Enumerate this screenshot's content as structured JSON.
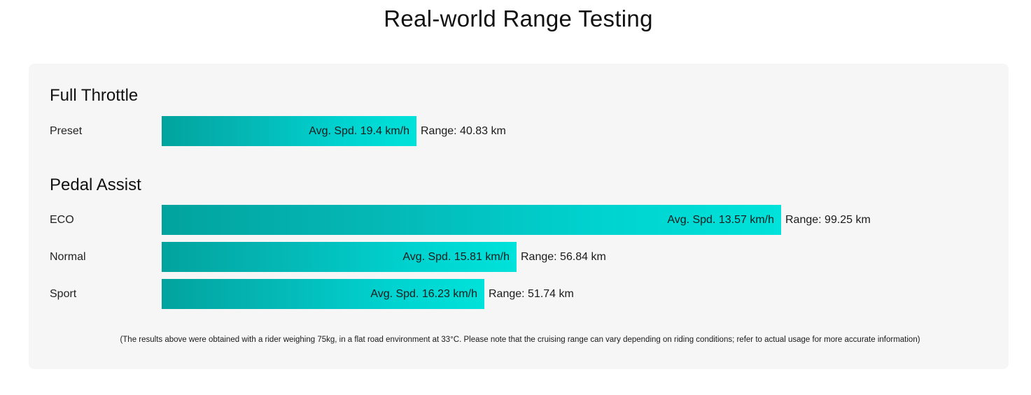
{
  "page": {
    "title": "Real-world Range Testing"
  },
  "chart_data": {
    "type": "bar",
    "title": "Real-world Range Testing",
    "xlabel": "",
    "ylabel": "",
    "grid": false,
    "groups": [
      {
        "title": "Full Throttle",
        "rows": [
          {
            "label": "Preset",
            "range_km": 40.83,
            "speed_text": "Avg. Spd. 19.4 km/h",
            "range_text": "Range: 40.83 km"
          }
        ]
      },
      {
        "title": "Pedal Assist",
        "rows": [
          {
            "label": "ECO",
            "range_km": 99.25,
            "speed_text": "Avg. Spd. 13.57 km/h",
            "range_text": "Range: 99.25 km"
          },
          {
            "label": "Normal",
            "range_km": 56.84,
            "speed_text": "Avg. Spd. 15.81 km/h",
            "range_text": "Range: 56.84 km"
          },
          {
            "label": "Sport",
            "range_km": 51.74,
            "speed_text": "Avg. Spd. 16.23 km/h",
            "range_text": "Range: 51.74 km"
          }
        ]
      }
    ],
    "colors": {
      "bar_start": "#02a39e",
      "bar_end": "#00e2da"
    }
  },
  "footnote": "(The results above were obtained with a rider weighing 75kg, in a flat road environment at 33°C. Please note that the cruising range can vary depending on riding conditions; refer to actual usage for more accurate information)"
}
